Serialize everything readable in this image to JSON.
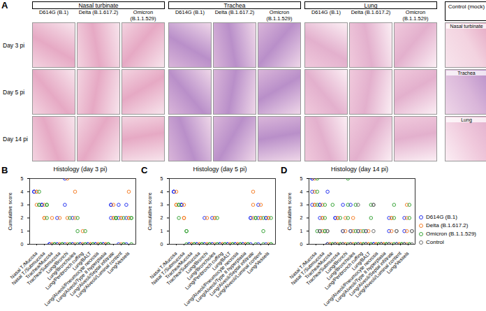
{
  "panel_a": {
    "label": "A",
    "groups": [
      {
        "name": "Nasal turbinate",
        "variants": [
          "D614G (B.1)",
          "Delta (B.1.617.2)",
          "Omicron (B.1.1.529)"
        ]
      },
      {
        "name": "Trachea",
        "variants": [
          "D614G (B.1)",
          "Delta (B.1.617.2)",
          "Omicron (B.1.1.529)"
        ]
      },
      {
        "name": "Lung",
        "variants": [
          "D614G (B.1)",
          "Delta (B.1.617.2)",
          "Omicron (B.1.1.529)"
        ]
      }
    ],
    "rows": [
      "Day 3 pi",
      "Day 5 pi",
      "Day 14 pi"
    ],
    "control": {
      "title": "Control (mock)",
      "tissues": [
        "Nasal turbinate",
        "Trachea",
        "Lung"
      ]
    }
  },
  "chart_data": [
    {
      "panel": "B",
      "type": "scatter",
      "title": "Histology (day 3 pi)",
      "y_label": "Cumulative score",
      "categories": [
        "Nasal T./Mucosa",
        "Nasal T./Submucosa",
        "Trachea/Mucosa",
        "Trachea/Submucosa",
        "Lung/Bronchi",
        "Lung/Bronchioles",
        "Lung/Peribronch cuffing",
        "Lung/BALT",
        "Lung/Alveoli/Pneumocyte necrosis",
        "Lung/Alveoli/Type II hyperplasia",
        "Lung/Alveoli/Septal infiltrate",
        "Lung/Alveoli/Luminal content",
        "Lung/Vessels"
      ],
      "ylim": [
        0,
        5
      ],
      "yticks": [
        0,
        1,
        2,
        3,
        4,
        5
      ],
      "marker": "circle",
      "series": [
        {
          "name": "D614G (B.1)",
          "color": "#2936f0",
          "values": [
            [
              4,
              4,
              4
            ],
            [
              3,
              3,
              3
            ],
            [
              0,
              0,
              0
            ],
            [
              2,
              0,
              0
            ],
            [
              5,
              3,
              0
            ],
            [
              2,
              0,
              0
            ],
            [
              0,
              0,
              0
            ],
            [
              0,
              0,
              0
            ],
            [
              0,
              0,
              0
            ],
            [
              0,
              0,
              0
            ],
            [
              3,
              3,
              2
            ],
            [
              3,
              2,
              0
            ],
            [
              3,
              2,
              0
            ]
          ]
        },
        {
          "name": "Delta (B.1.617.2)",
          "color": "#f5802a",
          "values": [
            [
              4,
              4,
              3
            ],
            [
              2,
              2,
              3
            ],
            [
              2,
              0,
              0
            ],
            [
              2,
              0,
              0
            ],
            [
              5,
              2,
              0
            ],
            [
              4,
              2,
              0
            ],
            [
              1,
              0,
              0
            ],
            [
              0,
              0,
              0
            ],
            [
              0,
              0,
              0
            ],
            [
              0,
              0,
              0
            ],
            [
              3,
              2,
              2
            ],
            [
              2,
              2,
              0
            ],
            [
              4,
              2,
              2
            ]
          ]
        },
        {
          "name": "Omicron (B.1.1.529)",
          "color": "#3aa53a",
          "values": [
            [
              4,
              3,
              3
            ],
            [
              3,
              3,
              2
            ],
            [
              0,
              0,
              0
            ],
            [
              0,
              0,
              0
            ],
            [
              2,
              0,
              0
            ],
            [
              2,
              1,
              0
            ],
            [
              1,
              0,
              0
            ],
            [
              0,
              0,
              0
            ],
            [
              0,
              0,
              0
            ],
            [
              0,
              0,
              0
            ],
            [
              2,
              2,
              2
            ],
            [
              2,
              0,
              0
            ],
            [
              2,
              2,
              0
            ]
          ]
        }
      ]
    },
    {
      "panel": "C",
      "type": "scatter",
      "title": "Histology (day 5 pi)",
      "y_label": "Cumulative score",
      "categories": [
        "Nasal T./Mucosa",
        "Nasal T./Submucosa",
        "Trachea/Mucosa",
        "Trachea/Submucosa",
        "Lung/Bronchi",
        "Lung/Bronchioles",
        "Lung/Peribronch cuffing",
        "Lung/BALT",
        "Lung/Alveoli/Pneumocyte necrosis",
        "Lung/Alveoli/Type II hyperplasia",
        "Lung/Alveoli/Septal infiltrate",
        "Lung/Alveoli/Luminal content",
        "Lung/Vessels"
      ],
      "ylim": [
        0,
        5
      ],
      "yticks": [
        0,
        1,
        2,
        3,
        4,
        5
      ],
      "marker": "circle",
      "series": [
        {
          "name": "D614G (B.1)",
          "color": "#2936f0",
          "values": [
            [
              4,
              4,
              4
            ],
            [
              3,
              3,
              3
            ],
            [
              0,
              0,
              0
            ],
            [
              0,
              0,
              0
            ],
            [
              2,
              0,
              0
            ],
            [
              2,
              0,
              0
            ],
            [
              0,
              0,
              0
            ],
            [
              0,
              0,
              0
            ],
            [
              0,
              0,
              0
            ],
            [
              0,
              0,
              0
            ],
            [
              2,
              2,
              0
            ],
            [
              3,
              2,
              0
            ],
            [
              2,
              2,
              0
            ]
          ]
        },
        {
          "name": "Delta (B.1.617.2)",
          "color": "#f5802a",
          "values": [
            [
              4,
              3,
              3
            ],
            [
              3,
              2,
              2
            ],
            [
              0,
              0,
              0
            ],
            [
              0,
              0,
              0
            ],
            [
              2,
              0,
              0
            ],
            [
              2,
              2,
              0
            ],
            [
              0,
              0,
              0
            ],
            [
              0,
              0,
              0
            ],
            [
              0,
              0,
              0
            ],
            [
              0,
              0,
              0
            ],
            [
              4,
              3,
              2
            ],
            [
              3,
              2,
              2
            ],
            [
              2,
              2,
              0
            ]
          ]
        },
        {
          "name": "Omicron (B.1.1.529)",
          "color": "#3aa53a",
          "values": [
            [
              3,
              3,
              2
            ],
            [
              1,
              1,
              0
            ],
            [
              0,
              0,
              0
            ],
            [
              0,
              0,
              0
            ],
            [
              0,
              0,
              0
            ],
            [
              2,
              0,
              0
            ],
            [
              0,
              0,
              0
            ],
            [
              0,
              0,
              0
            ],
            [
              0,
              0,
              0
            ],
            [
              0,
              0,
              0
            ],
            [
              2,
              2,
              0
            ],
            [
              2,
              1,
              0
            ],
            [
              2,
              0,
              0
            ]
          ]
        }
      ]
    },
    {
      "panel": "D",
      "type": "scatter",
      "title": "Histology (day 14 pi)",
      "y_label": "Cumulative score",
      "categories": [
        "Nasal T./Mucosa",
        "Nasal T./Submucosa",
        "Trachea/Mucosa",
        "Trachea/Submucosa",
        "Lung/Bronchi",
        "Lung/Bronchioles",
        "Lung/Peribronch cuffing",
        "Lung/BALT",
        "Lung/Alveoli/Pneumocyte necrosis",
        "Lung/Alveoli/Type II hyperplasia",
        "Lung/Alveoli/Septal infiltrate",
        "Lung/Alveoli/Luminal content",
        "Lung/Vessels"
      ],
      "ylim": [
        0,
        5
      ],
      "yticks": [
        0,
        1,
        2,
        3,
        4,
        5
      ],
      "marker": "circle",
      "legend": "right",
      "series": [
        {
          "name": "D614G (B.1)",
          "color": "#2936f0",
          "values": [
            [
              5,
              5,
              4,
              3
            ],
            [
              3,
              3,
              2,
              1
            ],
            [
              4,
              0,
              0,
              0
            ],
            [
              2,
              2,
              0,
              0
            ],
            [
              3,
              1,
              0,
              0
            ],
            [
              3,
              1,
              0,
              0
            ],
            [
              1,
              0,
              0,
              0
            ],
            [
              1,
              0,
              0,
              0
            ],
            [
              0,
              0,
              0,
              0
            ],
            [
              0,
              0,
              0,
              0
            ],
            [
              2,
              1,
              0,
              0
            ],
            [
              0,
              0,
              0,
              0
            ],
            [
              2,
              1,
              0,
              0
            ]
          ]
        },
        {
          "name": "Delta (B.1.617.2)",
          "color": "#f5802a",
          "values": [
            [
              5,
              4,
              3,
              3
            ],
            [
              3,
              2,
              2,
              1
            ],
            [
              0,
              0,
              0,
              0
            ],
            [
              2,
              2,
              0,
              0
            ],
            [
              2,
              1,
              0,
              0
            ],
            [
              2,
              1,
              0,
              0
            ],
            [
              1,
              0,
              0,
              0
            ],
            [
              1,
              0,
              0,
              0
            ],
            [
              0,
              0,
              0,
              0
            ],
            [
              0,
              0,
              0,
              0
            ],
            [
              2,
              2,
              1,
              0
            ],
            [
              0,
              0,
              0,
              0
            ],
            [
              3,
              2,
              1,
              0
            ]
          ]
        },
        {
          "name": "Omicron (B.1.1.529)",
          "color": "#3aa53a",
          "values": [
            [
              5,
              4,
              3,
              1
            ],
            [
              3,
              2,
              1,
              1
            ],
            [
              3,
              0,
              0,
              0
            ],
            [
              2,
              0,
              0,
              0
            ],
            [
              5,
              3,
              2,
              0
            ],
            [
              3,
              1,
              0,
              0
            ],
            [
              1,
              0,
              0,
              0
            ],
            [
              3,
              2,
              0,
              0
            ],
            [
              0,
              0,
              0,
              0
            ],
            [
              0,
              0,
              0,
              0
            ],
            [
              3,
              2,
              0,
              0
            ],
            [
              0,
              0,
              0,
              0
            ],
            [
              3,
              2,
              0,
              0
            ]
          ]
        },
        {
          "name": "Control",
          "color": "#707070",
          "values": [
            [
              1,
              1,
              1
            ],
            [
              1,
              1,
              0
            ],
            [
              0,
              0,
              0
            ],
            [
              1,
              0,
              0
            ],
            [
              1,
              0,
              0
            ],
            [
              3,
              1,
              0
            ],
            [
              1,
              0,
              0
            ],
            [
              3,
              3,
              1
            ],
            [
              0,
              0,
              0
            ],
            [
              0,
              0,
              0
            ],
            [
              1,
              1,
              0
            ],
            [
              0,
              0,
              0
            ],
            [
              1,
              1,
              0
            ]
          ]
        }
      ]
    }
  ]
}
